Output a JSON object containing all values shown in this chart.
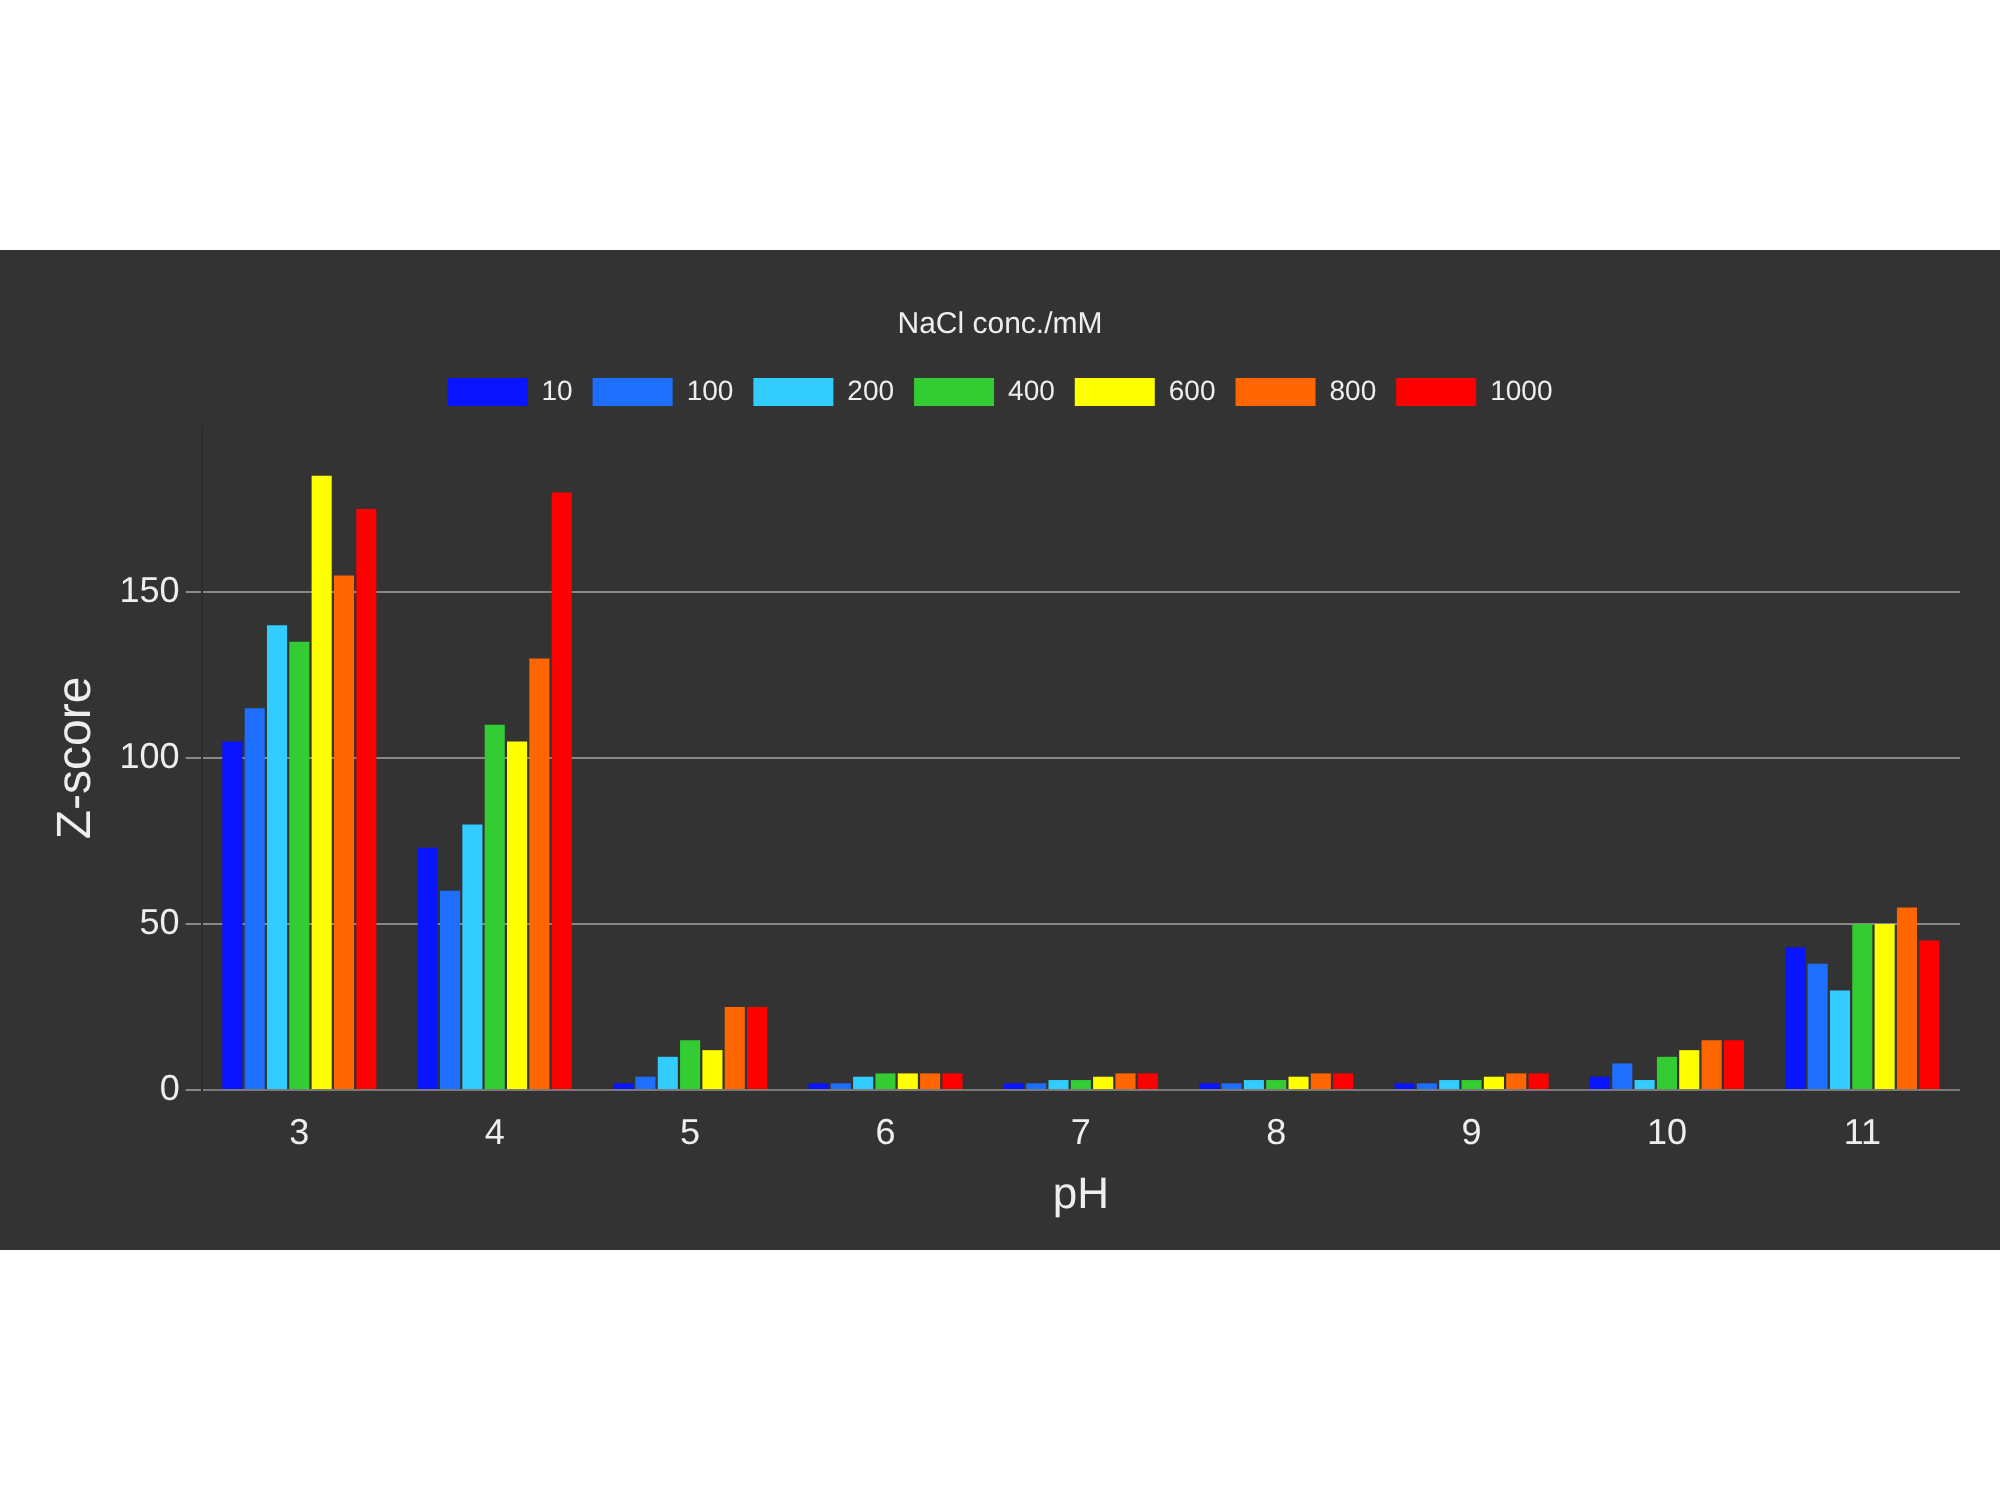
{
  "chart_data": {
    "type": "bar",
    "xlabel": "pH",
    "ylabel": "Z-score",
    "legend_title": "NaCl conc./mM",
    "categories": [
      "3",
      "4",
      "5",
      "6",
      "7",
      "8",
      "9",
      "10",
      "11"
    ],
    "series": [
      {
        "name": "10",
        "color": "#0a14ff",
        "values": [
          105,
          73,
          2,
          2,
          2,
          2,
          2,
          4,
          43
        ]
      },
      {
        "name": "100",
        "color": "#1e6fff",
        "values": [
          115,
          60,
          4,
          2,
          2,
          2,
          2,
          8,
          38
        ]
      },
      {
        "name": "200",
        "color": "#33ccff",
        "values": [
          140,
          80,
          10,
          4,
          3,
          3,
          3,
          3,
          30
        ]
      },
      {
        "name": "400",
        "color": "#33cc33",
        "values": [
          135,
          110,
          15,
          5,
          3,
          3,
          3,
          10,
          50
        ]
      },
      {
        "name": "600",
        "color": "#ffff00",
        "values": [
          185,
          105,
          12,
          5,
          4,
          4,
          4,
          12,
          50
        ]
      },
      {
        "name": "800",
        "color": "#ff6600",
        "values": [
          155,
          130,
          25,
          5,
          5,
          5,
          5,
          15,
          55
        ]
      },
      {
        "name": "1000",
        "color": "#ff0000",
        "values": [
          175,
          180,
          25,
          5,
          5,
          5,
          5,
          15,
          45
        ]
      }
    ],
    "ylim": [
      0,
      200
    ],
    "yticks": [
      0,
      50,
      100,
      150
    ],
    "grid": "y",
    "legend": "top"
  }
}
